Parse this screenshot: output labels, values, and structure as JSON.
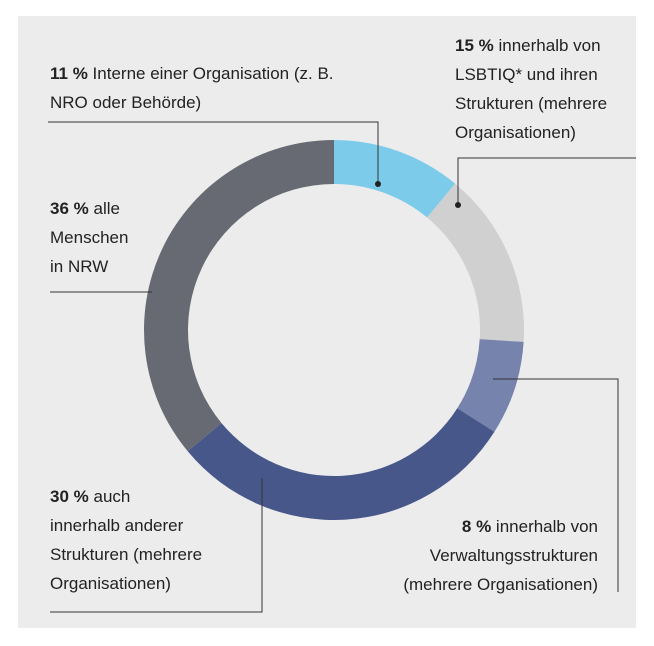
{
  "chart_data": {
    "type": "pie",
    "categories": [
      "Interne einer Organisation (z. B.\nNRO oder Behörde)",
      "innerhalb von\nLSBTIQ* und ihren\nStrukturen (mehrere\nOrganisationen)",
      "innerhalb von\nVerwaltungsstrukturen\n(mehrere Organisationen)",
      "auch\ninnerhalb anderer\nStrukturen (mehrere\nOrganisationen)",
      "alle\nMenschen\nin NRW"
    ],
    "values": [
      11,
      15,
      8,
      30,
      36
    ],
    "value_labels": [
      "11 %",
      "15 %",
      "8 %",
      "30 %",
      "36 %"
    ],
    "colors": [
      "#7ccbea",
      "#d0d0d0",
      "#7683ad",
      "#485789",
      "#676a72"
    ]
  }
}
